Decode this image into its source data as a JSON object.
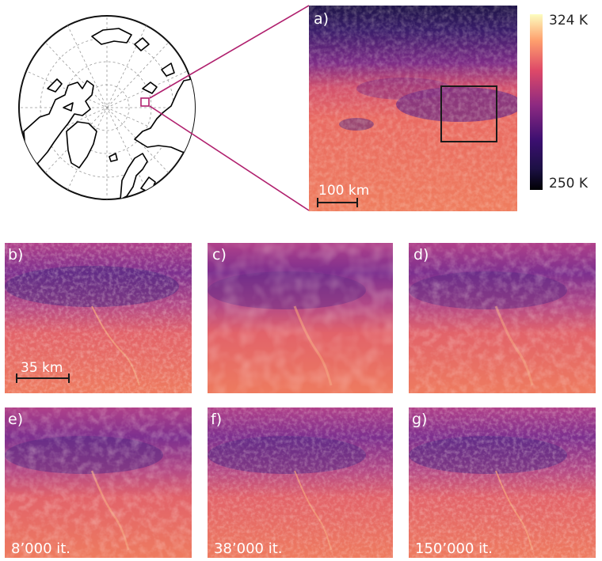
{
  "panels": {
    "a": {
      "label": "a)",
      "scale_bar": "100 km"
    },
    "b": {
      "label": "b)",
      "scale_bar": "35 km"
    },
    "c": {
      "label": "c)"
    },
    "d": {
      "label": "d)"
    },
    "e": {
      "label": "e)",
      "iterations": "8’000 it."
    },
    "f": {
      "label": "f)",
      "iterations": "38’000 it."
    },
    "g": {
      "label": "g)",
      "iterations": "150’000 it."
    }
  },
  "colorbar": {
    "max_label": "324 K",
    "min_label": "250 K",
    "colors": [
      "#000004",
      "#3b0f70",
      "#8c2981",
      "#de4968",
      "#fe9f6d",
      "#fcfdbf"
    ]
  },
  "colors": {
    "zoom_lines": "#b0206e",
    "inset_box": "#1a1a1a"
  }
}
